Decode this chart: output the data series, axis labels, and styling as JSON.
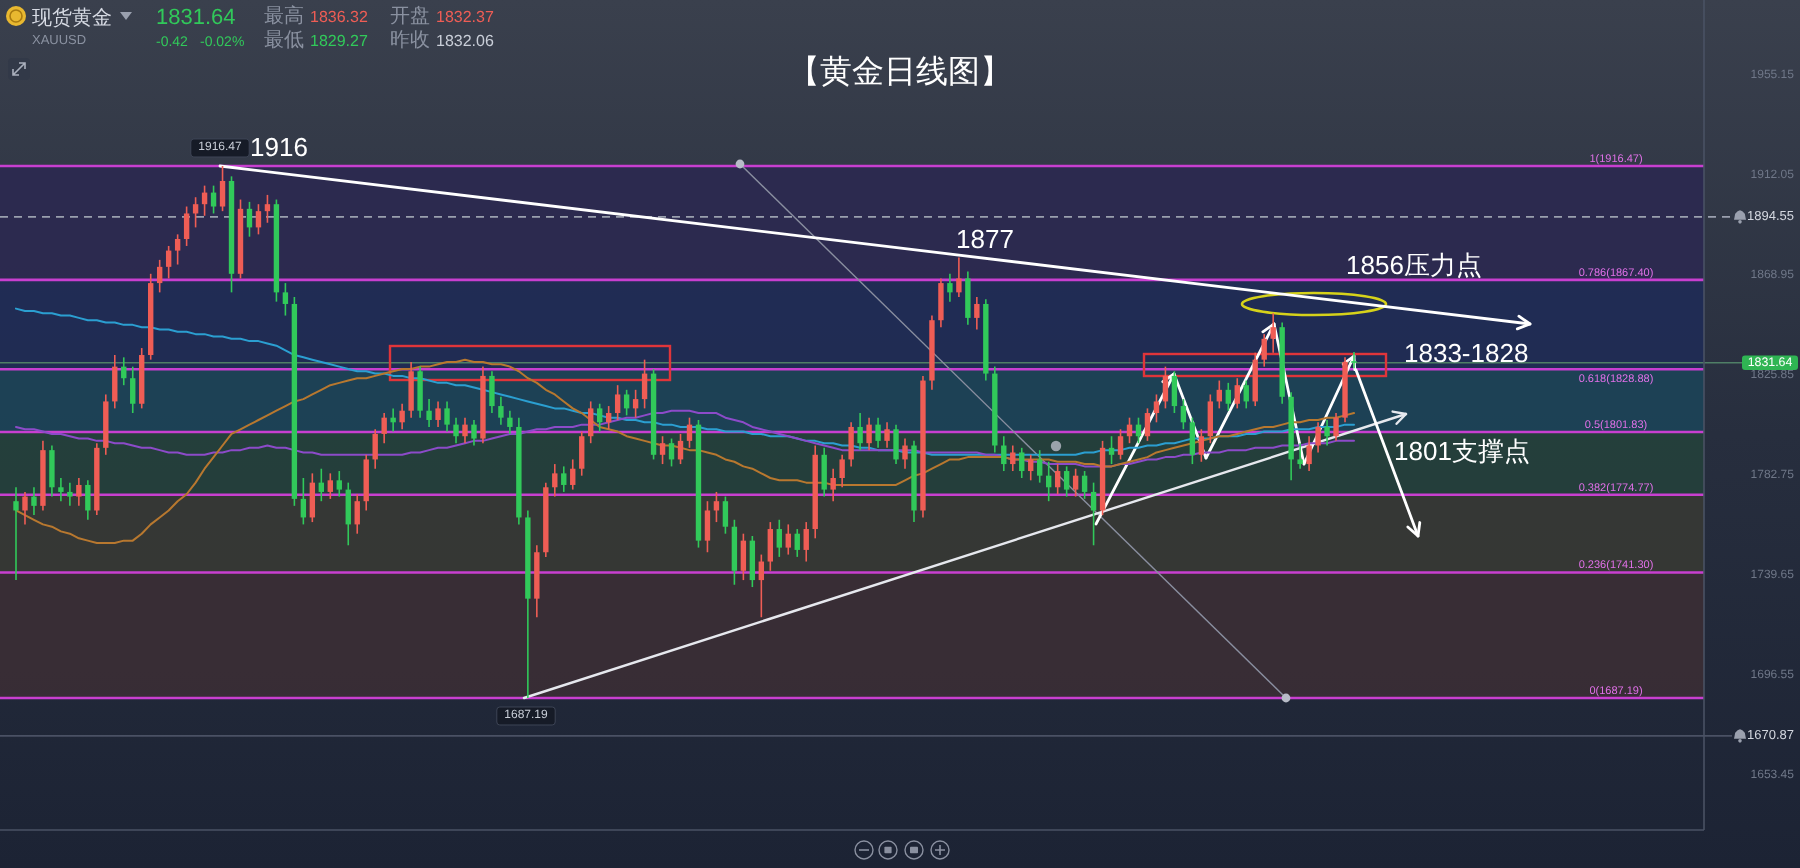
{
  "chart_data": {
    "type": "candlestick",
    "title": "【黄金日线图】",
    "subtitle": "现货黄金",
    "categories": [
      null,
      null,
      null,
      null,
      null,
      null,
      null,
      null,
      null,
      null,
      null,
      null,
      null,
      null,
      null,
      null,
      null,
      null,
      null,
      null,
      null,
      null,
      null,
      null,
      null,
      null,
      null,
      null,
      null,
      null,
      null,
      null,
      null,
      null,
      null,
      null,
      null,
      null,
      null,
      null,
      null,
      null,
      null,
      null,
      null,
      null,
      null,
      null,
      null,
      null,
      null,
      null,
      null,
      null,
      null,
      null,
      null,
      null,
      null,
      null,
      null,
      null,
      null,
      null,
      null,
      null,
      null,
      null,
      null,
      null,
      null,
      null,
      null,
      null,
      null,
      null,
      null,
      null,
      null,
      null,
      null,
      null,
      null,
      null,
      null,
      null,
      null,
      null,
      null,
      null,
      null,
      null,
      null,
      null,
      null,
      null,
      null,
      null,
      null,
      null,
      null,
      null,
      null,
      null,
      null,
      null,
      null,
      null,
      null,
      null,
      null,
      null,
      null,
      null,
      null,
      null,
      null,
      null,
      null,
      null,
      null,
      null,
      null,
      null,
      null,
      null,
      null,
      null,
      null,
      null,
      null,
      null,
      null,
      null,
      null,
      null,
      null,
      null,
      null,
      null,
      null,
      null,
      null,
      null,
      null,
      null,
      null,
      null,
      null,
      null
    ],
    "ohlc": [
      [
        1772,
        1778,
        1738,
        1768
      ],
      [
        1768,
        1776,
        1762,
        1774
      ],
      [
        1774,
        1778,
        1766,
        1770
      ],
      [
        1770,
        1798,
        1768,
        1794
      ],
      [
        1794,
        1796,
        1774,
        1778
      ],
      [
        1778,
        1782,
        1772,
        1776
      ],
      [
        1776,
        1780,
        1770,
        1774
      ],
      [
        1774,
        1782,
        1770,
        1779
      ],
      [
        1779,
        1781,
        1764,
        1768
      ],
      [
        1768,
        1797,
        1766,
        1795
      ],
      [
        1795,
        1818,
        1792,
        1815
      ],
      [
        1815,
        1835,
        1812,
        1830
      ],
      [
        1830,
        1834,
        1822,
        1825
      ],
      [
        1825,
        1830,
        1810,
        1814
      ],
      [
        1814,
        1838,
        1812,
        1835
      ],
      [
        1835,
        1870,
        1833,
        1866
      ],
      [
        1866,
        1876,
        1862,
        1873
      ],
      [
        1873,
        1882,
        1868,
        1880
      ],
      [
        1880,
        1887,
        1874,
        1885
      ],
      [
        1885,
        1899,
        1882,
        1896
      ],
      [
        1896,
        1903,
        1890,
        1900
      ],
      [
        1900,
        1908,
        1895,
        1905
      ],
      [
        1905,
        1908,
        1896,
        1899
      ],
      [
        1899,
        1916.47,
        1897,
        1910
      ],
      [
        1910,
        1912,
        1862,
        1870
      ],
      [
        1870,
        1902,
        1868,
        1898
      ],
      [
        1898,
        1901,
        1886,
        1890
      ],
      [
        1890,
        1900,
        1887,
        1897
      ],
      [
        1897,
        1904,
        1892,
        1900
      ],
      [
        1900,
        1902,
        1858,
        1862
      ],
      [
        1862,
        1866,
        1852,
        1857
      ],
      [
        1857,
        1860,
        1770,
        1773
      ],
      [
        1773,
        1782,
        1762,
        1765
      ],
      [
        1765,
        1784,
        1763,
        1780
      ],
      [
        1780,
        1786,
        1772,
        1776
      ],
      [
        1776,
        1784,
        1773,
        1781
      ],
      [
        1781,
        1785,
        1774,
        1777
      ],
      [
        1777,
        1780,
        1753,
        1762
      ],
      [
        1762,
        1775,
        1758,
        1772
      ],
      [
        1772,
        1792,
        1768,
        1790
      ],
      [
        1790,
        1803,
        1786,
        1801
      ],
      [
        1801,
        1810,
        1797,
        1808
      ],
      [
        1808,
        1812,
        1802,
        1806
      ],
      [
        1806,
        1814,
        1803,
        1811
      ],
      [
        1811,
        1832,
        1808,
        1828
      ],
      [
        1828,
        1830,
        1808,
        1811
      ],
      [
        1811,
        1816,
        1804,
        1807
      ],
      [
        1807,
        1815,
        1804,
        1812
      ],
      [
        1812,
        1815,
        1802,
        1805
      ],
      [
        1805,
        1808,
        1797,
        1800
      ],
      [
        1800,
        1808,
        1797,
        1805
      ],
      [
        1805,
        1807,
        1796,
        1799
      ],
      [
        1799,
        1830,
        1797,
        1826
      ],
      [
        1826,
        1828,
        1810,
        1813
      ],
      [
        1813,
        1817,
        1805,
        1808
      ],
      [
        1808,
        1811,
        1801,
        1804
      ],
      [
        1804,
        1808,
        1762,
        1765
      ],
      [
        1765,
        1768,
        1687.19,
        1730
      ],
      [
        1730,
        1753,
        1722,
        1750
      ],
      [
        1750,
        1780,
        1748,
        1778
      ],
      [
        1778,
        1788,
        1774,
        1784
      ],
      [
        1784,
        1787,
        1776,
        1779
      ],
      [
        1779,
        1790,
        1777,
        1786
      ],
      [
        1786,
        1802,
        1783,
        1800
      ],
      [
        1800,
        1815,
        1797,
        1812
      ],
      [
        1812,
        1814,
        1802,
        1806
      ],
      [
        1806,
        1813,
        1803,
        1810
      ],
      [
        1810,
        1822,
        1807,
        1818
      ],
      [
        1818,
        1820,
        1809,
        1812
      ],
      [
        1812,
        1820,
        1808,
        1816
      ],
      [
        1816,
        1833,
        1812,
        1827
      ],
      [
        1827,
        1829,
        1790,
        1792
      ],
      [
        1792,
        1800,
        1788,
        1797
      ],
      [
        1797,
        1799,
        1787,
        1790
      ],
      [
        1790,
        1801,
        1788,
        1798
      ],
      [
        1798,
        1808,
        1795,
        1805
      ],
      [
        1805,
        1807,
        1752,
        1755
      ],
      [
        1755,
        1772,
        1750,
        1768
      ],
      [
        1768,
        1776,
        1763,
        1772
      ],
      [
        1772,
        1774,
        1758,
        1761
      ],
      [
        1761,
        1764,
        1736,
        1742
      ],
      [
        1742,
        1758,
        1738,
        1755
      ],
      [
        1755,
        1757,
        1735,
        1738
      ],
      [
        1738,
        1749,
        1722,
        1746
      ],
      [
        1746,
        1763,
        1742,
        1760
      ],
      [
        1760,
        1764,
        1748,
        1752
      ],
      [
        1752,
        1762,
        1749,
        1758
      ],
      [
        1758,
        1760,
        1748,
        1751
      ],
      [
        1751,
        1763,
        1746,
        1760
      ],
      [
        1760,
        1796,
        1756,
        1792
      ],
      [
        1792,
        1795,
        1774,
        1777
      ],
      [
        1777,
        1786,
        1772,
        1782
      ],
      [
        1782,
        1792,
        1778,
        1790
      ],
      [
        1790,
        1806,
        1787,
        1804
      ],
      [
        1804,
        1810,
        1794,
        1797
      ],
      [
        1797,
        1808,
        1794,
        1805
      ],
      [
        1805,
        1808,
        1795,
        1798
      ],
      [
        1798,
        1806,
        1795,
        1803
      ],
      [
        1803,
        1805,
        1788,
        1790
      ],
      [
        1790,
        1799,
        1786,
        1796
      ],
      [
        1796,
        1798,
        1763,
        1768
      ],
      [
        1768,
        1826,
        1765,
        1824
      ],
      [
        1824,
        1852,
        1820,
        1850
      ],
      [
        1850,
        1868,
        1847,
        1866
      ],
      [
        1866,
        1870,
        1858,
        1862
      ],
      [
        1862,
        1877,
        1860,
        1868
      ],
      [
        1868,
        1871,
        1848,
        1851
      ],
      [
        1851,
        1860,
        1846,
        1857
      ],
      [
        1857,
        1859,
        1824,
        1827
      ],
      [
        1827,
        1830,
        1793,
        1796
      ],
      [
        1796,
        1800,
        1785,
        1788
      ],
      [
        1788,
        1796,
        1785,
        1793
      ],
      [
        1793,
        1795,
        1782,
        1785
      ],
      [
        1785,
        1792,
        1781,
        1790
      ],
      [
        1790,
        1794,
        1780,
        1783
      ],
      [
        1783,
        1789,
        1772,
        1778
      ],
      [
        1778,
        1788,
        1775,
        1785
      ],
      [
        1785,
        1787,
        1774,
        1777
      ],
      [
        1777,
        1786,
        1774,
        1783
      ],
      [
        1783,
        1785,
        1773,
        1776
      ],
      [
        1776,
        1780,
        1753,
        1768
      ],
      [
        1768,
        1798,
        1766,
        1795
      ],
      [
        1795,
        1800,
        1788,
        1792
      ],
      [
        1792,
        1803,
        1790,
        1800
      ],
      [
        1800,
        1808,
        1797,
        1805
      ],
      [
        1805,
        1808,
        1797,
        1800
      ],
      [
        1800,
        1812,
        1798,
        1810
      ],
      [
        1810,
        1818,
        1806,
        1815
      ],
      [
        1815,
        1830,
        1812,
        1826
      ],
      [
        1826,
        1828,
        1810,
        1813
      ],
      [
        1813,
        1816,
        1803,
        1806
      ],
      [
        1806,
        1808,
        1788,
        1792
      ],
      [
        1792,
        1803,
        1789,
        1800
      ],
      [
        1800,
        1818,
        1797,
        1815
      ],
      [
        1815,
        1824,
        1812,
        1820
      ],
      [
        1820,
        1823,
        1811,
        1814
      ],
      [
        1814,
        1825,
        1812,
        1822
      ],
      [
        1822,
        1824,
        1812,
        1815
      ],
      [
        1815,
        1836,
        1813,
        1833
      ],
      [
        1833,
        1844,
        1830,
        1842
      ],
      [
        1842,
        1853,
        1836,
        1847
      ],
      [
        1847,
        1849,
        1814,
        1817
      ],
      [
        1817,
        1819,
        1781,
        1790
      ],
      [
        1790,
        1797,
        1786,
        1788
      ],
      [
        1788,
        1800,
        1785,
        1796
      ],
      [
        1796,
        1806,
        1793,
        1804
      ],
      [
        1804,
        1807,
        1796,
        1800
      ],
      [
        1800,
        1810,
        1798,
        1808
      ],
      [
        1808,
        1834,
        1806,
        1832.06
      ],
      [
        1832.37,
        1836.32,
        1829.27,
        1831.64
      ]
    ],
    "colors": [
      "#31c95a",
      "#ef5d55",
      "#31c95a",
      "#ef5d55",
      "#31c95a",
      "#31c95a",
      "#31c95a",
      "#ef5d55",
      "#31c95a",
      "#ef5d55",
      "#ef5d55",
      "#ef5d55",
      "#31c95a",
      "#31c95a",
      "#ef5d55",
      "#ef5d55",
      "#ef5d55",
      "#ef5d55",
      "#ef5d55",
      "#ef5d55",
      "#ef5d55",
      "#ef5d55",
      "#31c95a",
      "#ef5d55",
      "#31c95a",
      "#ef5d55",
      "#31c95a",
      "#ef5d55",
      "#ef5d55",
      "#31c95a",
      "#31c95a",
      "#31c95a",
      "#31c95a",
      "#ef5d55",
      "#31c95a",
      "#ef5d55",
      "#31c95a",
      "#31c95a",
      "#ef5d55",
      "#ef5d55",
      "#ef5d55",
      "#ef5d55",
      "#31c95a",
      "#ef5d55",
      "#ef5d55",
      "#31c95a",
      "#31c95a",
      "#ef5d55",
      "#31c95a",
      "#31c95a",
      "#ef5d55",
      "#31c95a",
      "#ef5d55",
      "#31c95a",
      "#31c95a",
      "#31c95a",
      "#31c95a",
      "#31c95a",
      "#ef5d55",
      "#ef5d55",
      "#ef5d55",
      "#31c95a",
      "#ef5d55",
      "#ef5d55",
      "#ef5d55",
      "#31c95a",
      "#ef5d55",
      "#ef5d55",
      "#31c95a",
      "#ef5d55",
      "#ef5d55",
      "#31c95a",
      "#ef5d55",
      "#31c95a",
      "#ef5d55",
      "#ef5d55",
      "#31c95a",
      "#ef5d55",
      "#ef5d55",
      "#31c95a",
      "#31c95a",
      "#ef5d55",
      "#31c95a",
      "#ef5d55",
      "#ef5d55",
      "#31c95a",
      "#ef5d55",
      "#31c95a",
      "#ef5d55",
      "#ef5d55",
      "#31c95a",
      "#ef5d55",
      "#ef5d55",
      "#ef5d55",
      "#31c95a",
      "#ef5d55",
      "#31c95a",
      "#ef5d55",
      "#31c95a",
      "#ef5d55",
      "#31c95a",
      "#ef5d55",
      "#ef5d55",
      "#ef5d55",
      "#31c95a",
      "#ef5d55",
      "#31c95a",
      "#ef5d55",
      "#31c95a",
      "#31c95a",
      "#31c95a",
      "#ef5d55",
      "#31c95a",
      "#ef5d55",
      "#31c95a",
      "#31c95a",
      "#ef5d55",
      "#31c95a",
      "#ef5d55",
      "#31c95a",
      "#31c95a",
      "#ef5d55",
      "#31c95a",
      "#ef5d55",
      "#ef5d55",
      "#31c95a",
      "#ef5d55",
      "#ef5d55",
      "#ef5d55",
      "#31c95a",
      "#31c95a",
      "#31c95a",
      "#ef5d55",
      "#ef5d55",
      "#ef5d55",
      "#31c95a",
      "#ef5d55",
      "#31c95a",
      "#ef5d55",
      "#ef5d55",
      "#ef5d55",
      "#31c95a",
      "#31c95a",
      "#31c95a",
      "#ef5d55",
      "#ef5d55",
      "#31c95a",
      "#ef5d55",
      "#ef5d55",
      "#31c95a"
    ],
    "series": [
      {
        "type": "line",
        "color": "#2b9fd1",
        "values": [
          1855,
          1854,
          1854,
          1853,
          1853,
          1852,
          1852,
          1851,
          1850,
          1850,
          1849,
          1849,
          1848,
          1848,
          1847,
          1847,
          1846,
          1846,
          1845,
          1845,
          1844,
          1844,
          1843,
          1843,
          1842,
          1842,
          1841,
          1841,
          1840,
          1839,
          1837,
          1835,
          1834,
          1833,
          1832,
          1831,
          1830,
          1829,
          1828,
          1828,
          1827,
          1827,
          1826,
          1826,
          1825,
          1825,
          1824,
          1823,
          1823,
          1822,
          1822,
          1821,
          1820,
          1819,
          1818,
          1817,
          1816,
          1815,
          1814,
          1813,
          1812,
          1812,
          1811,
          1810,
          1810,
          1809,
          1808,
          1808,
          1807,
          1807,
          1806,
          1806,
          1805,
          1805,
          1804,
          1804,
          1804,
          1803,
          1803,
          1802,
          1802,
          1802,
          1801,
          1801,
          1800,
          1800,
          1800,
          1799,
          1798,
          1798,
          1797,
          1797,
          1796,
          1796,
          1795,
          1795,
          1794,
          1794,
          1794,
          1793,
          1793,
          1793,
          1792,
          1792,
          1792,
          1792,
          1792,
          1792,
          1792,
          1792,
          1792,
          1792,
          1792,
          1792,
          1792,
          1792,
          1792,
          1792,
          1792,
          1793,
          1793,
          1794,
          1794,
          1794,
          1795,
          1795,
          1796,
          1796,
          1797,
          1797,
          1798,
          1799,
          1799,
          1799,
          1800,
          1800,
          1800,
          1801,
          1801,
          1802,
          1802,
          1802,
          1803,
          1803,
          1803,
          1804,
          1804,
          1804,
          1805,
          1805
        ]
      },
      {
        "type": "line",
        "color": "#8c4bc9",
        "values": [
          1804,
          1803,
          1803,
          1802,
          1801,
          1801,
          1800,
          1799,
          1799,
          1798,
          1798,
          1797,
          1797,
          1796,
          1795,
          1795,
          1794,
          1793,
          1793,
          1792,
          1792,
          1792,
          1793,
          1793,
          1794,
          1794,
          1795,
          1795,
          1796,
          1795,
          1795,
          1794,
          1793,
          1793,
          1792,
          1792,
          1792,
          1792,
          1792,
          1792,
          1792,
          1792,
          1792,
          1792,
          1793,
          1793,
          1794,
          1795,
          1795,
          1796,
          1797,
          1798,
          1798,
          1799,
          1800,
          1801,
          1801,
          1802,
          1803,
          1803,
          1804,
          1804,
          1804,
          1805,
          1805,
          1805,
          1806,
          1807,
          1808,
          1808,
          1809,
          1810,
          1810,
          1811,
          1811,
          1811,
          1810,
          1810,
          1810,
          1808,
          1807,
          1806,
          1804,
          1803,
          1802,
          1801,
          1800,
          1799,
          1798,
          1797,
          1796,
          1795,
          1794,
          1794,
          1794,
          1794,
          1794,
          1794,
          1794,
          1794,
          1794,
          1793,
          1793,
          1793,
          1793,
          1793,
          1793,
          1793,
          1792,
          1792,
          1791,
          1790,
          1790,
          1789,
          1789,
          1788,
          1788,
          1788,
          1788,
          1787,
          1787,
          1787,
          1787,
          1788,
          1788,
          1789,
          1790,
          1790,
          1791,
          1791,
          1792,
          1792,
          1793,
          1793,
          1793,
          1794,
          1794,
          1794,
          1795,
          1795,
          1795,
          1796,
          1796,
          1796,
          1797,
          1797,
          1797,
          1798,
          1798,
          1798
        ]
      },
      {
        "type": "line",
        "color": "#b8782f",
        "values": [
          1768,
          1766,
          1764,
          1762,
          1761,
          1759,
          1758,
          1756,
          1755,
          1754,
          1754,
          1754,
          1755,
          1755,
          1758,
          1762,
          1765,
          1768,
          1772,
          1775,
          1780,
          1786,
          1791,
          1796,
          1801,
          1803,
          1805,
          1807,
          1809,
          1811,
          1813,
          1815,
          1816,
          1818,
          1820,
          1822,
          1823,
          1824,
          1825,
          1825,
          1826,
          1827,
          1828,
          1829,
          1829,
          1830,
          1830,
          1831,
          1832,
          1832,
          1833,
          1832,
          1832,
          1831,
          1831,
          1830,
          1828,
          1825,
          1823,
          1820,
          1818,
          1815,
          1812,
          1810,
          1807,
          1804,
          1803,
          1802,
          1800,
          1799,
          1798,
          1797,
          1796,
          1796,
          1795,
          1794,
          1794,
          1793,
          1792,
          1790,
          1789,
          1787,
          1786,
          1784,
          1782,
          1781,
          1781,
          1781,
          1780,
          1780,
          1780,
          1779,
          1779,
          1779,
          1779,
          1779,
          1779,
          1779,
          1779,
          1781,
          1783,
          1784,
          1786,
          1788,
          1790,
          1790,
          1791,
          1791,
          1791,
          1791,
          1791,
          1790,
          1790,
          1790,
          1790,
          1790,
          1789,
          1789,
          1789,
          1788,
          1788,
          1787,
          1787,
          1788,
          1789,
          1790,
          1791,
          1793,
          1794,
          1795,
          1796,
          1797,
          1798,
          1799,
          1800,
          1800,
          1801,
          1802,
          1803,
          1804,
          1804,
          1805,
          1806,
          1806,
          1807,
          1807,
          1808,
          1808,
          1809,
          1810
        ]
      }
    ],
    "ylim": [
      1630.3,
      1988
    ],
    "yticks": [
      1955.15,
      1912.05,
      1868.95,
      1825.85,
      1782.75,
      1739.65,
      1696.55,
      1653.45
    ],
    "tick_labels": "y",
    "bands": [
      {
        "axis": "y",
        "from": 1867.4,
        "to": 1916.47,
        "color": "#2c2851"
      },
      {
        "axis": "y",
        "from": 1828.88,
        "to": 1867.4,
        "color": "#1f2b57"
      },
      {
        "axis": "y",
        "from": 1801.83,
        "to": 1828.88,
        "color": "#1b4459"
      },
      {
        "axis": "y",
        "from": 1774.77,
        "to": 1801.83,
        "color": "#25423b"
      },
      {
        "axis": "y",
        "from": 1741.3,
        "to": 1774.77,
        "color": "#383a34"
      },
      {
        "axis": "y",
        "from": 1687.19,
        "to": 1741.3,
        "color": "#3c2e35"
      }
    ],
    "ref_lines": [
      {
        "axis": "y",
        "value": 1916.47,
        "label": "1(1916.47)",
        "color": "#c83fd0"
      },
      {
        "axis": "y",
        "value": 1867.4,
        "label": "0.786(1867.40)",
        "color": "#c83fd0"
      },
      {
        "axis": "y",
        "value": 1828.88,
        "label": "0.618(1828.88)",
        "color": "#c83fd0"
      },
      {
        "axis": "y",
        "value": 1801.83,
        "label": "0.5(1801.83)",
        "color": "#c83fd0"
      },
      {
        "axis": "y",
        "value": 1774.77,
        "label": "0.382(1774.77)",
        "color": "#c83fd0"
      },
      {
        "axis": "y",
        "value": 1741.3,
        "label": "0.236(1741.30)",
        "color": "#c83fd0"
      },
      {
        "axis": "y",
        "value": 1687.19,
        "label": "0(1687.19)",
        "color": "#c83fd0"
      },
      {
        "axis": "y",
        "value": 1894.55,
        "label": "1894.55",
        "color": "#9aa0ae",
        "line_style": "dashed"
      },
      {
        "axis": "y",
        "value": 1831.64,
        "label": "1831.64",
        "color": "#4f7f66"
      },
      {
        "axis": "y",
        "value": 1670.87,
        "label": "1670.87",
        "color": "#4a5164"
      }
    ],
    "annotations": [
      "1916",
      "1877",
      "1856压力点",
      "1833-1828",
      "1801支撑点",
      {
        "text": "1916.47",
        "y": 1916.47
      },
      {
        "text": "1687.19",
        "y": 1687.19
      },
      "XAUUSD",
      "1831.64",
      "-0.42",
      "-0.02%",
      "最高",
      "1836.32",
      "开盘",
      "1832.37",
      "最低",
      "1829.27",
      "昨收",
      "1832.06"
    ]
  }
}
